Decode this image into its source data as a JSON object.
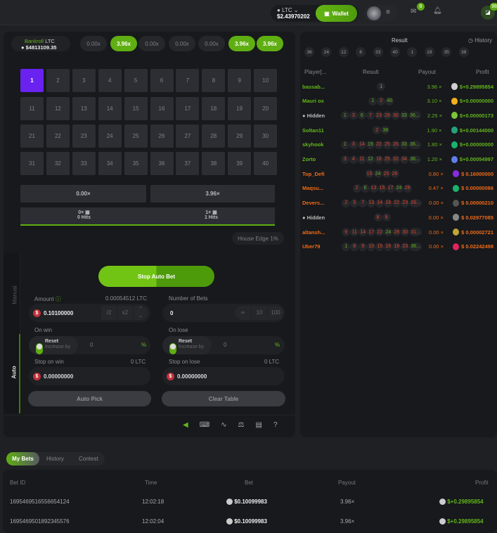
{
  "header": {
    "currency": "LTC",
    "balance": "$2.43970202",
    "wallet_label": "Wallet",
    "mail_badge": "8",
    "chat_badge": "98"
  },
  "game": {
    "bankroll_label": "Bankroll",
    "bankroll_currency": "LTC",
    "bankroll_value": "$4813109.35",
    "recent_multipliers": [
      {
        "v": "0.00x",
        "win": false
      },
      {
        "v": "3.96x",
        "win": true
      },
      {
        "v": "0.00x",
        "win": false
      },
      {
        "v": "0.00x",
        "win": false
      },
      {
        "v": "0.00x",
        "win": false
      },
      {
        "v": "3.96x",
        "win": true
      },
      {
        "v": "3.96x",
        "win": true
      }
    ],
    "numbers": [
      "1",
      "2",
      "3",
      "4",
      "5",
      "6",
      "7",
      "8",
      "9",
      "10",
      "11",
      "12",
      "13",
      "14",
      "15",
      "16",
      "17",
      "18",
      "19",
      "20",
      "21",
      "22",
      "23",
      "24",
      "25",
      "26",
      "27",
      "28",
      "29",
      "30",
      "31",
      "32",
      "33",
      "34",
      "35",
      "36",
      "37",
      "38",
      "39",
      "40"
    ],
    "selected": [
      "1"
    ],
    "payouts": [
      "0.00×",
      "3.96×"
    ],
    "hits": [
      {
        "mult": "0×",
        "label": "0 Hits"
      },
      {
        "mult": "1×",
        "label": "1 Hits"
      }
    ],
    "house_edge": "House Edge 1%"
  },
  "controls": {
    "tabs": [
      "Manual",
      "Auto"
    ],
    "active_tab": "Auto",
    "stop_label": "Stop Auto Bet",
    "amount_label": "Amount",
    "amount_ltc": "0.00054512 LTC",
    "amount_value": "0.10100000",
    "half": "/2",
    "double": "x2",
    "bets_label": "Number of Bets",
    "bets_value": "0",
    "bets_opts": [
      "∞",
      "10",
      "100"
    ],
    "on_win": "On win",
    "on_lose": "On lose",
    "reset": "Reset",
    "increase": "Increase by",
    "win_pct": "0",
    "lose_pct": "0",
    "pct": "%",
    "stop_win": "Stop on win",
    "stop_win_ltc": "0 LTC",
    "stop_win_value": "0.00000000",
    "stop_lose": "Stop on lose",
    "stop_lose_ltc": "0 LTC",
    "stop_lose_value": "0.00000000",
    "auto_pick": "Auto Pick",
    "clear_table": "Clear Table"
  },
  "results": {
    "title": "Result",
    "history": "History",
    "recent": [
      "36",
      "24",
      "12",
      "6",
      "33",
      "40",
      "1",
      "19",
      "35",
      "38"
    ],
    "headers": [
      "Player[...",
      "Result",
      "Payout",
      "Profit"
    ],
    "rows": [
      {
        "player": "bassab...",
        "win": true,
        "balls": [
          [
            "1",
            "n"
          ]
        ],
        "payout": "3.96 ×",
        "profit": "$+0.29895854",
        "coin": "#cfcfcf"
      },
      {
        "player": "Mauri ox",
        "win": true,
        "balls": [
          [
            "1",
            "g"
          ],
          [
            "2",
            "r"
          ],
          [
            "40",
            "g"
          ]
        ],
        "payout": "3.10 ×",
        "profit": "$+0.00000000",
        "coin": "#f2b01e"
      },
      {
        "player": "Hidden",
        "hidden": true,
        "win": true,
        "balls": [
          [
            "1",
            "g"
          ],
          [
            "3",
            "r"
          ],
          [
            "6",
            "g"
          ],
          [
            "7",
            "r"
          ],
          [
            "23",
            "r"
          ],
          [
            "28",
            "r"
          ],
          [
            "30",
            "r"
          ],
          [
            "33",
            "g"
          ],
          [
            "36...",
            "g"
          ]
        ],
        "payout": "2.25 ×",
        "profit": "$+0.00000173",
        "coin": "#7cc63a"
      },
      {
        "player": "Soltan11",
        "win": true,
        "balls": [
          [
            "2",
            "r"
          ],
          [
            "38",
            "g"
          ]
        ],
        "payout": "1.90 ×",
        "profit": "$+0.00144000",
        "coin": "#26a17b"
      },
      {
        "player": "skyhook",
        "win": true,
        "balls": [
          [
            "1",
            "g"
          ],
          [
            "3",
            "r"
          ],
          [
            "14",
            "r"
          ],
          [
            "19",
            "g"
          ],
          [
            "22",
            "r"
          ],
          [
            "25",
            "r"
          ],
          [
            "26",
            "r"
          ],
          [
            "33",
            "g"
          ],
          [
            "36...",
            "g"
          ]
        ],
        "payout": "1.80 ×",
        "profit": "$+0.00000000",
        "coin": "#1bb26b"
      },
      {
        "player": "Zorto",
        "win": true,
        "balls": [
          [
            "3",
            "r"
          ],
          [
            "4",
            "r"
          ],
          [
            "11",
            "r"
          ],
          [
            "12",
            "g"
          ],
          [
            "18",
            "r"
          ],
          [
            "25",
            "r"
          ],
          [
            "32",
            "r"
          ],
          [
            "34",
            "r"
          ],
          [
            "38...",
            "g"
          ]
        ],
        "payout": "1.20 ×",
        "profit": "$+0.00054997",
        "coin": "#627eea"
      },
      {
        "player": "Top_Defi",
        "win": false,
        "balls": [
          [
            "15",
            "r"
          ],
          [
            "24",
            "g"
          ],
          [
            "25",
            "r"
          ],
          [
            "26",
            "r"
          ]
        ],
        "payout": "0.80 ×",
        "profit": "$ 0.16000000",
        "coin": "#8a2be2"
      },
      {
        "player": "Maqsu...",
        "win": false,
        "balls": [
          [
            "2",
            "r"
          ],
          [
            "6",
            "g"
          ],
          [
            "13",
            "r"
          ],
          [
            "15",
            "r"
          ],
          [
            "17",
            "r"
          ],
          [
            "24",
            "g"
          ],
          [
            "28",
            "r"
          ]
        ],
        "payout": "0.47 ×",
        "profit": "$ 0.00000086",
        "coin": "#1bb26b"
      },
      {
        "player": "Devers...",
        "win": false,
        "balls": [
          [
            "2",
            "r"
          ],
          [
            "5",
            "r"
          ],
          [
            "7",
            "r"
          ],
          [
            "13",
            "r"
          ],
          [
            "14",
            "r"
          ],
          [
            "16",
            "r"
          ],
          [
            "22",
            "r"
          ],
          [
            "23",
            "r"
          ],
          [
            "26...",
            "r"
          ]
        ],
        "payout": "0.00 ×",
        "profit": "$ 0.00000210",
        "coin": "#555"
      },
      {
        "player": "Hidden",
        "hidden": true,
        "win": false,
        "balls": [
          [
            "8",
            "r"
          ],
          [
            "9",
            "r"
          ]
        ],
        "payout": "0.00 ×",
        "profit": "$ 0.02977085",
        "coin": "#888"
      },
      {
        "player": "altansh...",
        "win": false,
        "balls": [
          [
            "9",
            "r"
          ],
          [
            "11",
            "r"
          ],
          [
            "14",
            "r"
          ],
          [
            "17",
            "r"
          ],
          [
            "22",
            "r"
          ],
          [
            "24",
            "g"
          ],
          [
            "28",
            "r"
          ],
          [
            "30",
            "r"
          ],
          [
            "31...",
            "r"
          ]
        ],
        "payout": "0.00 ×",
        "profit": "$ 0.00002721",
        "coin": "#c2a633"
      },
      {
        "player": "Uber79",
        "win": false,
        "balls": [
          [
            "1",
            "g"
          ],
          [
            "8",
            "r"
          ],
          [
            "9",
            "r"
          ],
          [
            "10",
            "r"
          ],
          [
            "15",
            "r"
          ],
          [
            "16",
            "r"
          ],
          [
            "18",
            "r"
          ],
          [
            "23",
            "r"
          ],
          [
            "36...",
            "g"
          ]
        ],
        "payout": "0.00 ×",
        "profit": "$ 0.02242498",
        "coin": "#e0245e"
      }
    ]
  },
  "bets": {
    "tabs": [
      "My Bets",
      "History",
      "Contest"
    ],
    "headers": [
      "Bet ID",
      "Time",
      "Bet",
      "Payout",
      "Profit"
    ],
    "rows": [
      {
        "id": "1695469516556654124",
        "time": "12:02:18",
        "bet": "$0.10099983",
        "payout": "3.96×",
        "profit": "$+0.29895854"
      },
      {
        "id": "1695469501892345576",
        "time": "12:02:04",
        "bet": "$0.10099983",
        "payout": "3.96×",
        "profit": "$+0.29895854"
      }
    ]
  }
}
